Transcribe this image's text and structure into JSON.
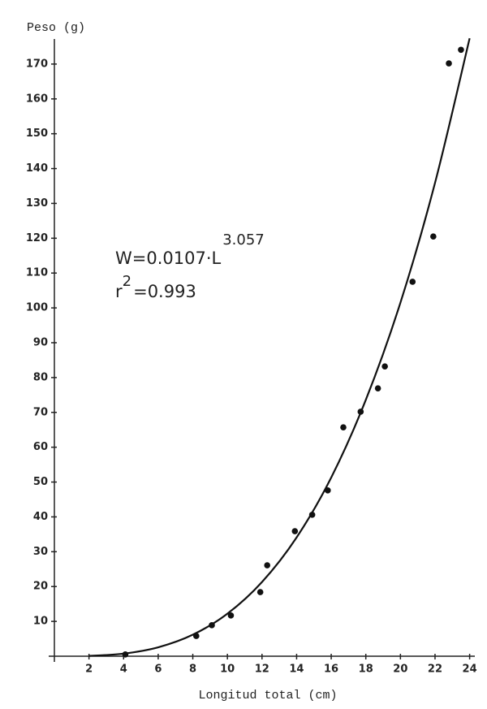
{
  "chart_data": {
    "type": "scatter",
    "y_label": "Peso (g)",
    "x_label": "Longitud total (cm)",
    "annotations": [
      {
        "text": "W=0.0107·L",
        "sup": "3.057"
      },
      {
        "text": "r",
        "sup": "2",
        "after": "=0.993"
      }
    ],
    "xlim": [
      0,
      24.3
    ],
    "ylim": [
      0,
      180
    ],
    "xticks": [
      2,
      4,
      6,
      8,
      10,
      12,
      14,
      16,
      18,
      20,
      22,
      24
    ],
    "yticks": [
      10,
      20,
      30,
      40,
      50,
      60,
      70,
      80,
      90,
      100,
      110,
      120,
      130,
      140,
      150,
      160,
      170
    ],
    "series": [
      {
        "mode": "markers",
        "color": "#111111",
        "x": [
          4.1,
          8.2,
          9.1,
          10.2,
          11.9,
          12.3,
          13.9,
          14.9,
          15.8,
          16.7,
          17.7,
          18.7,
          19.1,
          20.7,
          21.9,
          22.8,
          23.5
        ],
        "values": [
          0.5,
          5.8,
          8.9,
          11.7,
          18.4,
          26.1,
          35.9,
          40.6,
          47.6,
          65.7,
          70.2,
          76.9,
          83.2,
          107.5,
          120.5,
          170.2,
          174.1
        ]
      },
      {
        "mode": "line",
        "color": "#111111",
        "x": [
          2,
          4,
          6,
          8,
          10,
          12,
          14,
          16,
          18,
          20,
          22,
          24
        ],
        "values": [
          0.09,
          0.74,
          2.56,
          6.17,
          12.2,
          21.3,
          34.1,
          51.3,
          73.6,
          101.5,
          135.9,
          177.4
        ]
      }
    ]
  }
}
